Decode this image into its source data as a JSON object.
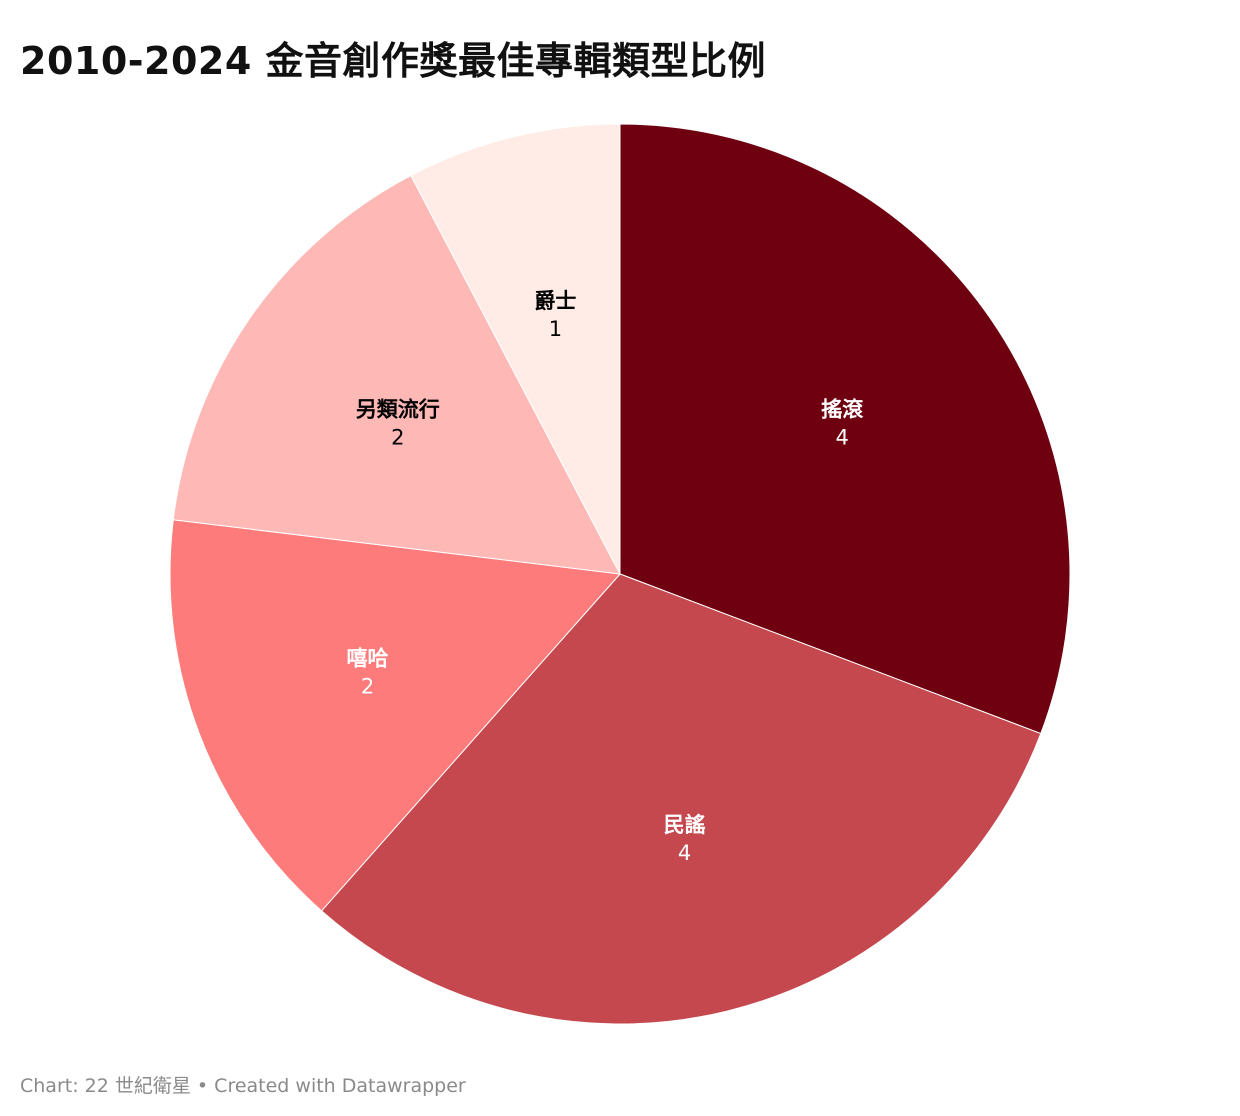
{
  "title": "2010-2024 金音創作獎最佳專輯類型比例",
  "footer": {
    "prefix": "Chart: ",
    "source": "22 世紀衛星",
    "separator": " • ",
    "credit": "Created with Datawrapper"
  },
  "chart_data": {
    "type": "pie",
    "title": "2010-2024 金音創作獎最佳專輯類型比例",
    "slices": [
      {
        "label": "搖滾",
        "value": 4,
        "color": "#6e0010",
        "text_color": "#ffffff"
      },
      {
        "label": "民謠",
        "value": 4,
        "color": "#c4484d",
        "text_color": "#ffffff"
      },
      {
        "label": "嘻哈",
        "value": 2,
        "color": "#fe7b7c",
        "text_color": "#ffffff"
      },
      {
        "label": "另類流行",
        "value": 2,
        "color": "#feb8b6",
        "text_color": "#000000"
      },
      {
        "label": "爵士",
        "value": 1,
        "color": "#ffece6",
        "text_color": "#000000"
      }
    ]
  }
}
